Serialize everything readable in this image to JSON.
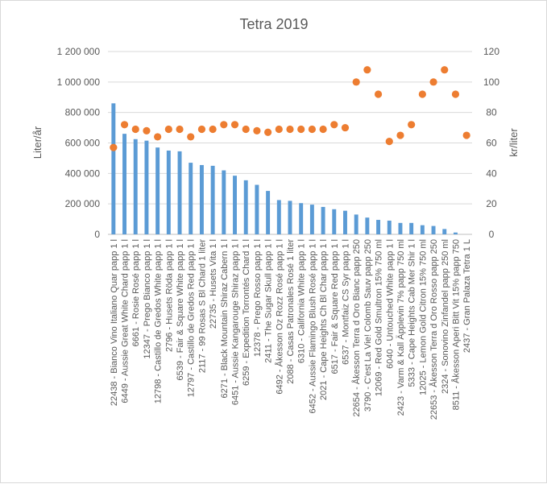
{
  "chart_data": {
    "type": "bar",
    "title": "Tetra 2019",
    "ylabel": "Liter/år",
    "y2label": "kr/liter",
    "ylim": [
      0,
      1200000
    ],
    "y2lim": [
      0,
      120
    ],
    "yticks": [
      "0",
      "200 000",
      "400 000",
      "600 000",
      "800 000",
      "1 000 000",
      "1 200 000"
    ],
    "y2ticks": [
      "0",
      "20",
      "40",
      "60",
      "80",
      "100",
      "120"
    ],
    "colors": {
      "bars": "#5b9bd5",
      "points": "#ed7d31",
      "text": "#595959"
    },
    "categories": [
      "22438 - Bianco Vino Italiano Quar papp 1 l",
      "6449 - Aussie Great White Chard papp 1 l",
      "6661 - Rosie Rosé papp 1 l",
      "12347 - Prego Bianco papp 1 l",
      "12798 - Castillo de Gredos White papp 1 l",
      "2796 - Husets Röda papp 1 l",
      "6539 - Fair & Square White papp 1 l",
      "12797 - Castillo de Gredos Red papp 1 l",
      "2117 - 99 Rosas S Bl Chard 1 liter",
      "22735 - Husets Vita 1 l",
      "6271 - Black Mountain Shiraz Cabern 1 l",
      "6451 - Aussie Kangarouge Shiraz papp 1 l",
      "6259 - Expedition Torrontés Chard 1 l",
      "12378 - Prego Rosso papp 1 l",
      "2411 - The Sugar Skull papp 1 l",
      "6492 - Åkesson Oz Rozz Rosé papp 1 l",
      "2088 - Casas Patronales Rosé 1 liter",
      "6310 - California White papp 1 l",
      "6452 - Aussie Flamingo Blush Rosé papp 1 l",
      "2021 - Cape Heights Ch Bl Char papp 1 l",
      "6517 - Fair & Square Red papp 1 l",
      "6537 - Montfaiz CS Syr papp 1 l",
      "22654 - Åkesson Terra d Oro Bianc papp 250",
      "3790 - C'est La Vie! Colomb Sauv papp 250",
      "12069 - Red Gold Smultron 15% 750 ml",
      "6040 - Untouched White papp 1 l",
      "2423 - Varm & Kall Äpplevin 7% papp 750 ml",
      "5333 - Cape Heights Cab Mer Shir 1 l",
      "12025 - Lemon Gold Citron 15% 750 ml",
      "22653 - Åkesson Terra d Oro Rosso papp 250",
      "2324 - Sonovino Zinfandel papp 250 ml",
      "8511 - Åkesson Aperi Bitt Vit 15% papp 750",
      "2437 - Gran Palaza Tetra 1 L"
    ],
    "series": [
      {
        "type": "bar",
        "axis": "left",
        "values": [
          860000,
          660000,
          625000,
          615000,
          570000,
          550000,
          545000,
          470000,
          455000,
          450000,
          420000,
          385000,
          355000,
          325000,
          285000,
          225000,
          220000,
          205000,
          195000,
          180000,
          165000,
          155000,
          130000,
          110000,
          95000,
          90000,
          75000,
          75000,
          60000,
          55000,
          35000,
          12000,
          0
        ]
      },
      {
        "type": "scatter",
        "axis": "right",
        "values": [
          57,
          72,
          69,
          68,
          64,
          69,
          69,
          64,
          69,
          69,
          72,
          72,
          69,
          68,
          67,
          69,
          69,
          69,
          69,
          69,
          72,
          70,
          100,
          108,
          92,
          61,
          65,
          72,
          92,
          100,
          108,
          92,
          65
        ]
      }
    ]
  }
}
